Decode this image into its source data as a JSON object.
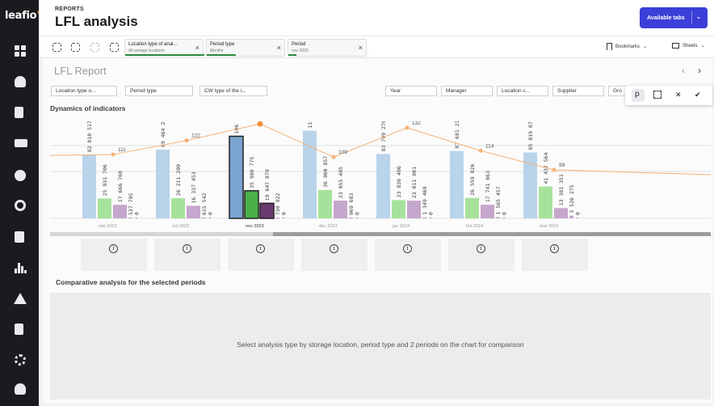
{
  "app": {
    "logo": "leafio",
    "section": "REPORTS",
    "title": "LFL analysis",
    "available_tabs": "Available tabs"
  },
  "sidebar": {
    "icons": [
      "dashboard-icon",
      "lightbulb-icon",
      "document-icon",
      "truck-icon",
      "compass-icon",
      "search-icon",
      "bar-chart-icon",
      "warning-icon",
      "file-icon",
      "gear-icon",
      "user-icon"
    ]
  },
  "selections": {
    "chips": [
      {
        "key": "Location type of anal...",
        "value": "All storage locations"
      },
      {
        "key": "Period type",
        "value": "Months"
      },
      {
        "key": "Period",
        "value": "nov 2023"
      }
    ],
    "bookmarks": "Bookmarks",
    "sheets": "Sheets"
  },
  "report": {
    "title": "LFL Report",
    "filters": [
      "Location type o...",
      "Period type",
      "CW type of the i...",
      "Year",
      "Manager",
      "Location c...",
      "Supplier",
      "Gro"
    ],
    "dynamics_title": "Dynamics of indicators",
    "comparative_title": "Comparative analysis for the selected periods",
    "comparative_message": "Select analysis type by storage location, period type and 2 periods on the chart for comparison"
  },
  "chart_data": {
    "type": "bar",
    "categories": [
      "sep 2023",
      "oct 2023",
      "nov 2023",
      "dec 2023",
      "jan 2024",
      "feb 2024",
      "mar 2024"
    ],
    "series": [
      {
        "name": "",
        "color": "#b9d3ea",
        "values": [
          82810517,
          89464256,
          106854665,
          114087848,
          83799270,
          87681217,
          85819876
        ],
        "labels": [
          "82 810 517",
          "89 464 256",
          "106 854 665",
          "114 087 848",
          "83 799 270",
          "87 681 217",
          "85 819 876"
        ]
      },
      {
        "name": "",
        "color": "#a6e29b",
        "values": [
          25931706,
          26211209,
          35980775,
          36960857,
          23836406,
          26559826,
          41437564
        ],
        "labels": [
          "25 931 706",
          "26 211 209",
          "35 980 775",
          "36 960 857",
          "23 836 406",
          "26 559 826",
          "41 437 564"
        ]
      },
      {
        "name": "",
        "color": "#c5a6cc",
        "values": [
          17666760,
          16337453,
          19647879,
          23055485,
          23011081,
          17741663,
          13381351
        ],
        "labels": [
          "17 666 760",
          "16 337 453",
          "19 647 879",
          "23 055 485",
          "23 011 081",
          "17 741 663",
          "13 381 351"
        ]
      },
      {
        "name": "",
        "color": "#c5a6cc",
        "values": [
          537795,
          615542,
          730922,
          969683,
          1349469,
          1565457,
          3526275
        ],
        "labels": [
          "537 795",
          "615 542",
          "730 922",
          "969 683",
          "1 349 469",
          "1 565 457",
          "3 526 275"
        ]
      },
      {
        "name": "",
        "color": "#999999",
        "values": [
          0,
          0,
          0,
          0,
          0,
          0,
          0
        ],
        "labels": [
          "0",
          "0",
          "0",
          "0",
          "0",
          "0",
          "0"
        ]
      }
    ],
    "line": {
      "name": "",
      "color": "#f5b27a",
      "values": [
        111,
        122,
        135,
        109,
        132,
        114,
        99
      ]
    },
    "selected_category": "nov 2023",
    "grid": true
  }
}
